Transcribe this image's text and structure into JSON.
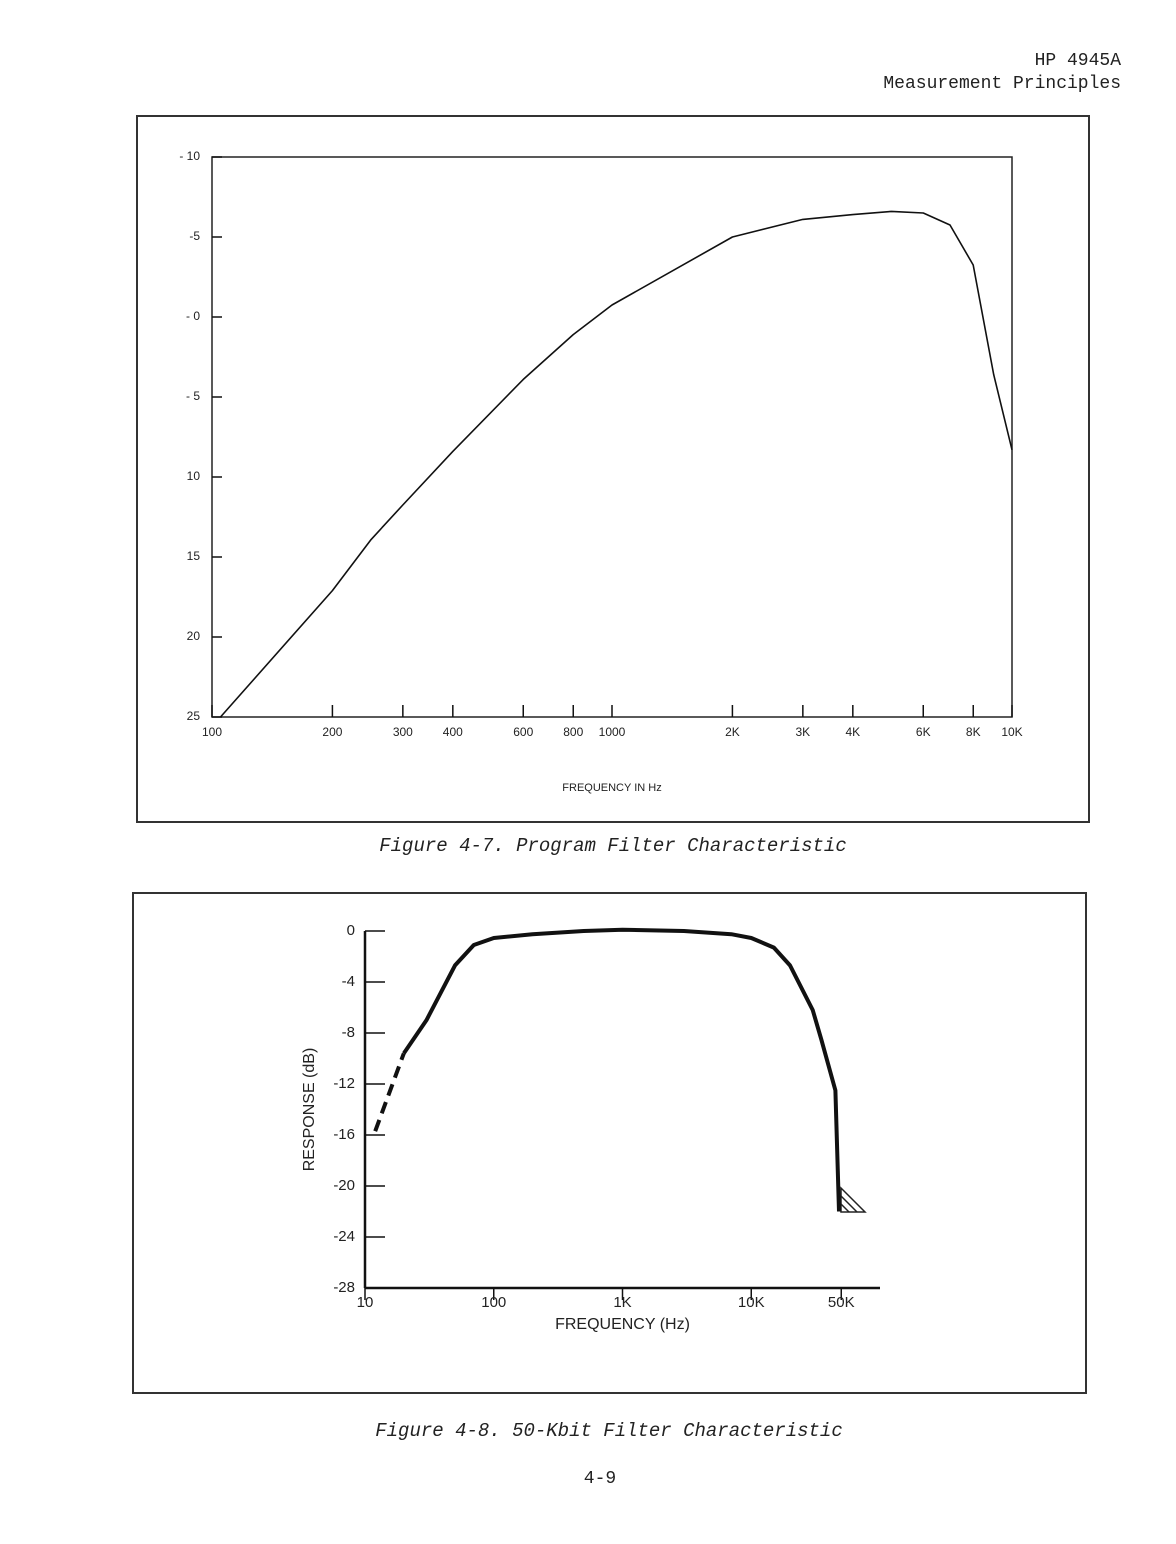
{
  "header": {
    "lines": [
      "HP 4945A",
      "Measurement Principles"
    ]
  },
  "chart_data": [
    {
      "type": "line",
      "log_x": true,
      "xlabel": "FREQUENCY IN Hz",
      "color": "#111111",
      "xlim": [
        100,
        10000
      ],
      "ylim": [
        -25,
        10
      ],
      "xticks": [
        100,
        200,
        300,
        400,
        600,
        800,
        1000,
        {
          "value": 2000,
          "label": "2K"
        },
        {
          "value": 3000,
          "label": "3K"
        },
        {
          "value": 4000,
          "label": "4K"
        },
        {
          "value": 6000,
          "label": "6K"
        },
        {
          "value": 8000,
          "label": "8K"
        },
        {
          "value": 10000,
          "label": "10K"
        }
      ],
      "yticks": [
        {
          "value": 10,
          "label": "- 10"
        },
        {
          "value": 5,
          "label": "-5"
        },
        {
          "value": 0,
          "label": "- 0"
        },
        {
          "value": -5,
          "label": "- 5"
        },
        {
          "value": -10,
          "label": "10"
        },
        {
          "value": -15,
          "label": "15"
        },
        {
          "value": -20,
          "label": "20"
        },
        {
          "value": -25,
          "label": "25"
        }
      ],
      "series": [
        {
          "color": "#111111",
          "style": "solid",
          "x": [
            105,
            200,
            250,
            300,
            400,
            600,
            800,
            1000,
            2000,
            3000,
            4000,
            5000,
            6000,
            7000,
            8000,
            9000,
            10000
          ],
          "values": [
            -25,
            -17.1,
            -13.9,
            -11.75,
            -8.4,
            -3.9,
            -1.1,
            0.75,
            5,
            6.1,
            6.4,
            6.6,
            6.5,
            5.75,
            3.25,
            -3.6,
            -8.3
          ]
        }
      ]
    },
    {
      "type": "line",
      "log_x": true,
      "xlabel": "FREQUENCY (Hz)",
      "ylabel": "RESPONSE (dB)",
      "color": "#111111",
      "xlim": [
        10,
        100000
      ],
      "ylim": [
        -28,
        0
      ],
      "xticks": [
        10,
        100,
        {
          "value": 1000,
          "label": "1K"
        },
        {
          "value": 10000,
          "label": "10K"
        },
        {
          "value": 50000,
          "label": "50K"
        }
      ],
      "yticks": [
        0,
        -4,
        -8,
        -12,
        -16,
        -20,
        -24,
        -28
      ],
      "series": [
        {
          "color": "#111111",
          "style": "dashed",
          "x": [
            12,
            20
          ],
          "values": [
            -15.7,
            -9.6
          ]
        },
        {
          "color": "#111111",
          "style": "solid",
          "x": [
            20,
            30,
            50,
            70,
            100,
            200,
            500,
            1000,
            3000,
            7000,
            10000,
            15000,
            20000,
            30000,
            35000,
            45000,
            48000
          ],
          "values": [
            -9.6,
            -7,
            -2.7,
            -1.1,
            -0.55,
            -0.25,
            0,
            0.1,
            0,
            -0.25,
            -0.55,
            -1.3,
            -2.7,
            -6.2,
            -8.5,
            -12.5,
            -22
          ]
        }
      ]
    }
  ],
  "captions": [
    "Figure 4-7. Program Filter Characteristic",
    "Figure 4-8. 50-Kbit Filter Characteristic"
  ],
  "page_number": "4-9"
}
